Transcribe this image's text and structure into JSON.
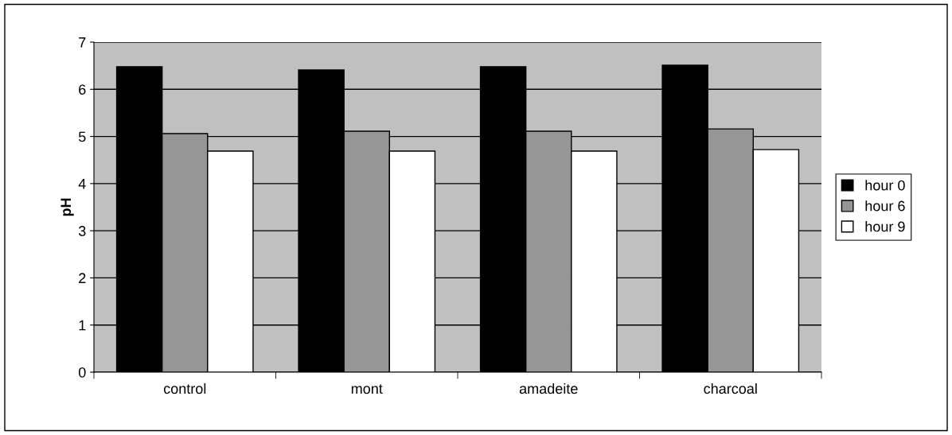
{
  "chart_data": {
    "type": "bar",
    "ylabel": "pH",
    "categories": [
      "control",
      "mont",
      "amadeite",
      "charcoal"
    ],
    "series": [
      {
        "name": "hour 0",
        "color": "#000000",
        "values": [
          6.48,
          6.41,
          6.48,
          6.51
        ]
      },
      {
        "name": "hour 6",
        "color": "#969696",
        "values": [
          5.06,
          5.11,
          5.11,
          5.16
        ]
      },
      {
        "name": "hour 9",
        "color": "#ffffff",
        "values": [
          4.69,
          4.69,
          4.69,
          4.72
        ]
      }
    ],
    "ylim": [
      0,
      7
    ],
    "yticks": [
      0,
      1,
      2,
      3,
      4,
      5,
      6,
      7
    ],
    "grid": "y",
    "legend": "right"
  }
}
